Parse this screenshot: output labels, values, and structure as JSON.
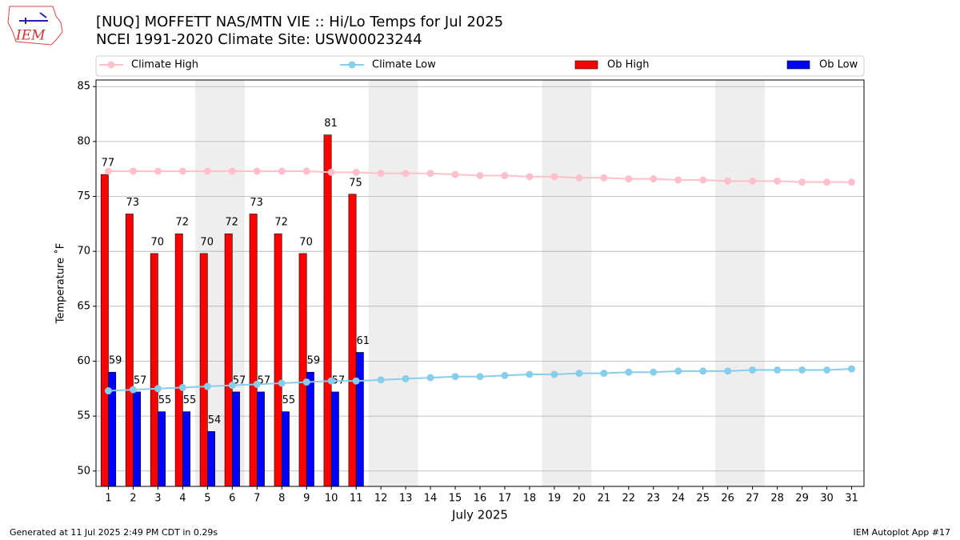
{
  "chart_data": {
    "type": "bar_line",
    "title": "[NUQ] MOFFETT NAS/MTN VIE :: Hi/Lo Temps for Jul 2025",
    "subtitle": "NCEI 1991-2020 Climate Site: USW00023244",
    "logo": "IEM",
    "xlabel": "July 2025",
    "ylabel": "Temperature ˚F",
    "footer_left": "Generated at 11 Jul 2025 2:49 PM CDT in 0.29s",
    "footer_right": "IEM Autoplot App #17",
    "x": [
      1,
      2,
      3,
      4,
      5,
      6,
      7,
      8,
      9,
      10,
      11,
      12,
      13,
      14,
      15,
      16,
      17,
      18,
      19,
      20,
      21,
      22,
      23,
      24,
      25,
      26,
      27,
      28,
      29,
      30,
      31
    ],
    "xlim": [
      0.5,
      31.5
    ],
    "xticks": [
      1,
      2,
      3,
      4,
      5,
      6,
      7,
      8,
      9,
      10,
      11,
      12,
      13,
      14,
      15,
      16,
      17,
      18,
      19,
      20,
      21,
      22,
      23,
      24,
      25,
      26,
      27,
      28,
      29,
      30,
      31
    ],
    "ylim": [
      48.6,
      85.6
    ],
    "yticks": [
      50,
      55,
      60,
      65,
      70,
      75,
      80,
      85
    ],
    "grid": true,
    "weekend_spans": [
      [
        5,
        6
      ],
      [
        12,
        13
      ],
      [
        19,
        20
      ],
      [
        26,
        27
      ]
    ],
    "series": [
      {
        "name": "Climate High",
        "kind": "line",
        "color": "#ffc0cb",
        "values": [
          77.3,
          77.3,
          77.3,
          77.3,
          77.3,
          77.3,
          77.3,
          77.3,
          77.3,
          77.2,
          77.2,
          77.1,
          77.1,
          77.1,
          77.0,
          76.9,
          76.9,
          76.8,
          76.8,
          76.7,
          76.7,
          76.6,
          76.6,
          76.5,
          76.5,
          76.4,
          76.4,
          76.4,
          76.3,
          76.3,
          76.3
        ]
      },
      {
        "name": "Climate Low",
        "kind": "line",
        "color": "#87ceeb",
        "values": [
          57.3,
          57.4,
          57.5,
          57.6,
          57.7,
          57.8,
          57.9,
          58.0,
          58.1,
          58.2,
          58.2,
          58.3,
          58.4,
          58.5,
          58.6,
          58.6,
          58.7,
          58.8,
          58.8,
          58.9,
          58.9,
          59.0,
          59.0,
          59.1,
          59.1,
          59.1,
          59.2,
          59.2,
          59.2,
          59.2,
          59.3
        ]
      },
      {
        "name": "Ob High",
        "kind": "bar",
        "color": "#ff0000",
        "values": [
          77.0,
          73.4,
          69.8,
          71.6,
          69.8,
          71.6,
          73.4,
          71.6,
          69.8,
          80.6,
          75.2,
          null,
          null,
          null,
          null,
          null,
          null,
          null,
          null,
          null,
          null,
          null,
          null,
          null,
          null,
          null,
          null,
          null,
          null,
          null,
          null
        ],
        "value_labels": [
          "77",
          "73",
          "70",
          "72",
          "70",
          "72",
          "73",
          "72",
          "70",
          "81",
          "75",
          null,
          null,
          null,
          null,
          null,
          null,
          null,
          null,
          null,
          null,
          null,
          null,
          null,
          null,
          null,
          null,
          null,
          null,
          null,
          null
        ]
      },
      {
        "name": "Ob Low",
        "kind": "bar",
        "color": "#0000ff",
        "values": [
          59.0,
          57.2,
          55.4,
          55.4,
          53.6,
          57.2,
          57.2,
          55.4,
          59.0,
          57.2,
          60.8,
          null,
          null,
          null,
          null,
          null,
          null,
          null,
          null,
          null,
          null,
          null,
          null,
          null,
          null,
          null,
          null,
          null,
          null,
          null,
          null
        ],
        "value_labels": [
          "59",
          "57",
          "55",
          "55",
          "54",
          "57",
          "57",
          "55",
          "59",
          "57",
          "61",
          null,
          null,
          null,
          null,
          null,
          null,
          null,
          null,
          null,
          null,
          null,
          null,
          null,
          null,
          null,
          null,
          null,
          null,
          null,
          null
        ]
      }
    ]
  }
}
